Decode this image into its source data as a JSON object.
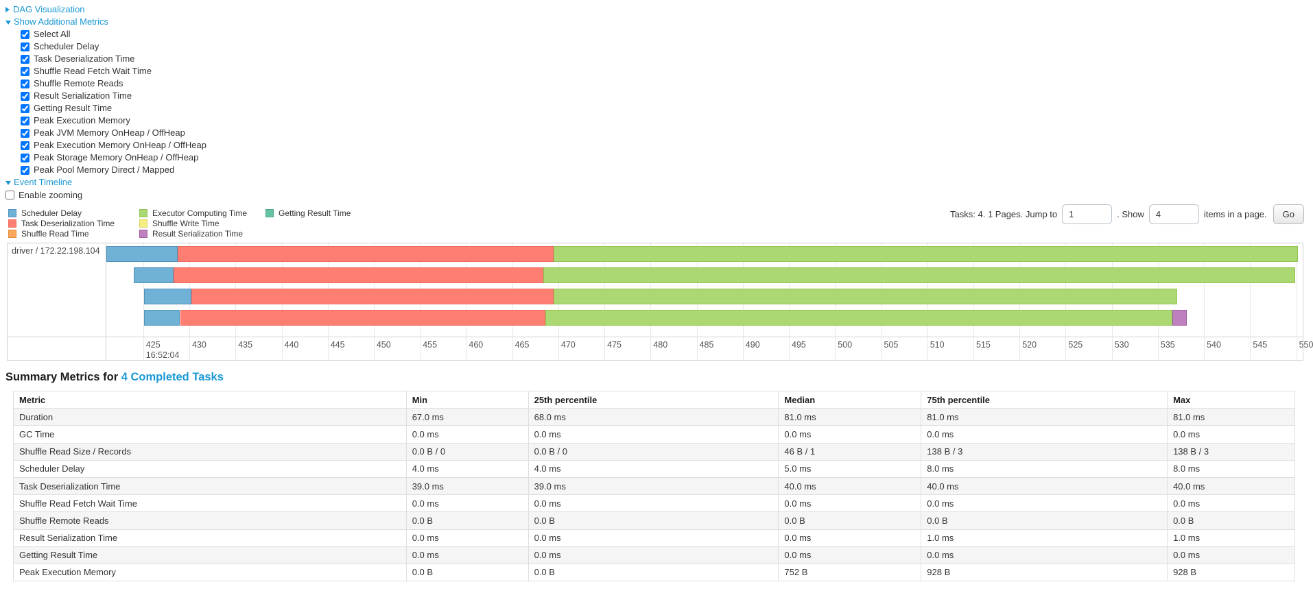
{
  "links": {
    "dag": "DAG Visualization",
    "metrics": "Show Additional Metrics",
    "timeline": "Event Timeline"
  },
  "metrics": {
    "items": [
      {
        "label": "Select All",
        "checked": true
      },
      {
        "label": "Scheduler Delay",
        "checked": true
      },
      {
        "label": "Task Deserialization Time",
        "checked": true
      },
      {
        "label": "Shuffle Read Fetch Wait Time",
        "checked": true
      },
      {
        "label": "Shuffle Remote Reads",
        "checked": true
      },
      {
        "label": "Result Serialization Time",
        "checked": true
      },
      {
        "label": "Getting Result Time",
        "checked": true
      },
      {
        "label": "Peak Execution Memory",
        "checked": true
      },
      {
        "label": "Peak JVM Memory OnHeap / OffHeap",
        "checked": true
      },
      {
        "label": "Peak Execution Memory OnHeap / OffHeap",
        "checked": true
      },
      {
        "label": "Peak Storage Memory OnHeap / OffHeap",
        "checked": true
      },
      {
        "label": "Peak Pool Memory Direct / Mapped",
        "checked": true
      }
    ]
  },
  "zooming": {
    "label": "Enable zooming",
    "checked": false
  },
  "legend": {
    "columns": [
      [
        {
          "label": "Scheduler Delay",
          "type": "scheduler-delay"
        },
        {
          "label": "Task Deserialization Time",
          "type": "task-deserialization"
        },
        {
          "label": "Shuffle Read Time",
          "type": "shuffle-read"
        }
      ],
      [
        {
          "label": "Executor Computing Time",
          "type": "executor-computing"
        },
        {
          "label": "Shuffle Write Time",
          "type": "shuffle-write"
        },
        {
          "label": "Result Serialization Time",
          "type": "result-serialization"
        }
      ],
      [
        {
          "label": "Getting Result Time",
          "type": "getting-result"
        }
      ]
    ]
  },
  "pagination": {
    "prefix": "Tasks: 4. 1 Pages. Jump to",
    "jump_value": "1",
    "show_label": ". Show",
    "show_value": "4",
    "suffix": "items in a page.",
    "go": "Go"
  },
  "timeline": {
    "group_label": "driver / 172.22.198.104",
    "axis": {
      "min": 421.0,
      "max": 550.7,
      "ticks": [
        425,
        430,
        435,
        440,
        445,
        450,
        455,
        460,
        465,
        470,
        475,
        480,
        485,
        490,
        495,
        500,
        505,
        510,
        515,
        520,
        525,
        530,
        535,
        540,
        545,
        550
      ],
      "sub_label": "16:52:04"
    },
    "colors": {
      "scheduler-delay": {
        "fill": "#6fb2d5",
        "border": "#5191bb"
      },
      "task-deserialization": {
        "fill": "#ff7e72",
        "border": "#f06a5e"
      },
      "shuffle-read": {
        "fill": "#fca75a",
        "border": "#e08c3e"
      },
      "executor-computing": {
        "fill": "#abd873",
        "border": "#94c552"
      },
      "shuffle-write": {
        "fill": "#f5ef83",
        "border": "#d9d35f"
      },
      "result-serialization": {
        "fill": "#be81be",
        "border": "#a35ca3"
      },
      "getting-result": {
        "fill": "#65c2a3",
        "border": "#4aa988"
      }
    },
    "tasks": [
      {
        "segments": [
          {
            "type": "scheduler-delay",
            "start": 421.0,
            "end": 428.7
          },
          {
            "type": "task-deserialization",
            "start": 428.7,
            "end": 469.5
          },
          {
            "type": "executor-computing",
            "start": 469.5,
            "end": 550.2
          }
        ]
      },
      {
        "segments": [
          {
            "type": "scheduler-delay",
            "start": 424.0,
            "end": 428.3
          },
          {
            "type": "task-deserialization",
            "start": 428.3,
            "end": 468.4
          },
          {
            "type": "executor-computing",
            "start": 468.4,
            "end": 549.9
          }
        ]
      },
      {
        "segments": [
          {
            "type": "scheduler-delay",
            "start": 425.1,
            "end": 430.2
          },
          {
            "type": "task-deserialization",
            "start": 430.2,
            "end": 469.5
          },
          {
            "type": "executor-computing",
            "start": 469.5,
            "end": 537.1
          }
        ]
      },
      {
        "segments": [
          {
            "type": "scheduler-delay",
            "start": 425.1,
            "end": 429.0
          },
          {
            "type": "task-deserialization",
            "start": 429.0,
            "end": 468.6
          },
          {
            "type": "executor-computing",
            "start": 468.6,
            "end": 536.6
          },
          {
            "type": "result-serialization",
            "start": 536.6,
            "end": 538.1
          }
        ]
      }
    ]
  },
  "summary": {
    "title_prefix": "Summary Metrics for",
    "title_link": "4 Completed Tasks",
    "table": {
      "headers": [
        "Metric",
        "Min",
        "25th percentile",
        "Median",
        "75th percentile",
        "Max"
      ],
      "rows": [
        {
          "metric": "Duration",
          "values": [
            "67.0 ms",
            "68.0 ms",
            "81.0 ms",
            "81.0 ms",
            "81.0 ms"
          ]
        },
        {
          "metric": "GC Time",
          "values": [
            "0.0 ms",
            "0.0 ms",
            "0.0 ms",
            "0.0 ms",
            "0.0 ms"
          ]
        },
        {
          "metric": "Shuffle Read Size / Records",
          "values": [
            "0.0 B / 0",
            "0.0 B / 0",
            "46 B / 1",
            "138 B / 3",
            "138 B / 3"
          ]
        },
        {
          "metric": "Scheduler Delay",
          "values": [
            "4.0 ms",
            "4.0 ms",
            "5.0 ms",
            "8.0 ms",
            "8.0 ms"
          ]
        },
        {
          "metric": "Task Deserialization Time",
          "values": [
            "39.0 ms",
            "39.0 ms",
            "40.0 ms",
            "40.0 ms",
            "40.0 ms"
          ]
        },
        {
          "metric": "Shuffle Read Fetch Wait Time",
          "values": [
            "0.0 ms",
            "0.0 ms",
            "0.0 ms",
            "0.0 ms",
            "0.0 ms"
          ]
        },
        {
          "metric": "Shuffle Remote Reads",
          "values": [
            "0.0 B",
            "0.0 B",
            "0.0 B",
            "0.0 B",
            "0.0 B"
          ]
        },
        {
          "metric": "Result Serialization Time",
          "values": [
            "0.0 ms",
            "0.0 ms",
            "0.0 ms",
            "1.0 ms",
            "1.0 ms"
          ]
        },
        {
          "metric": "Getting Result Time",
          "values": [
            "0.0 ms",
            "0.0 ms",
            "0.0 ms",
            "0.0 ms",
            "0.0 ms"
          ]
        },
        {
          "metric": "Peak Execution Memory",
          "values": [
            "0.0 B",
            "0.0 B",
            "752 B",
            "928 B",
            "928 B"
          ]
        }
      ]
    }
  }
}
